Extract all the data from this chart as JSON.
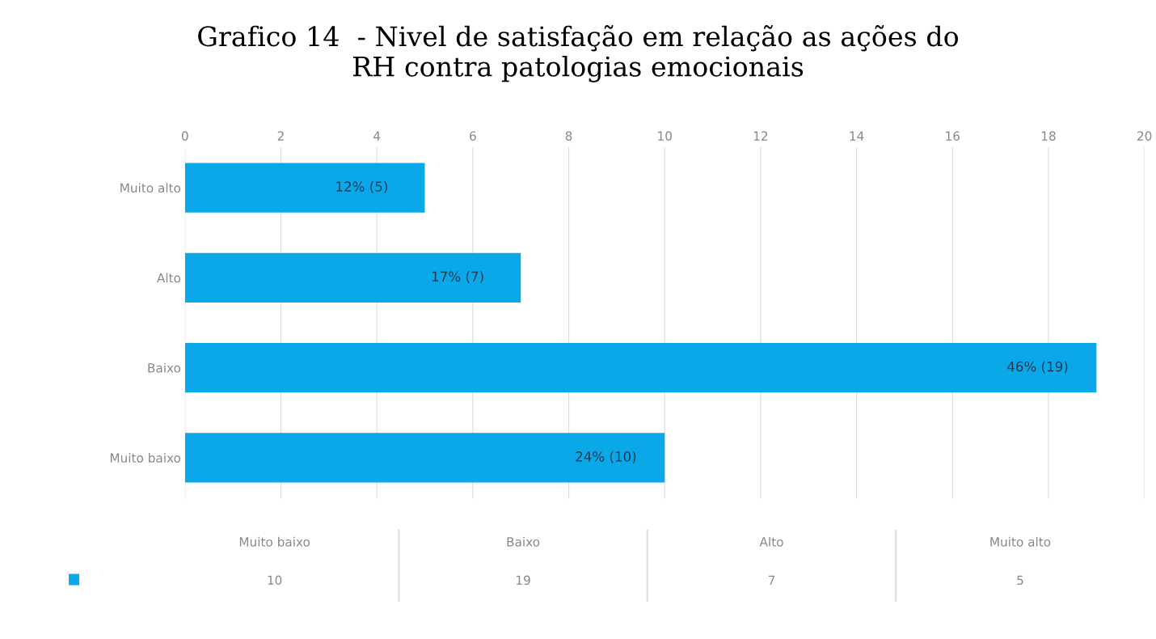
{
  "chart_data": {
    "type": "bar",
    "orientation": "horizontal",
    "title": "Grafico 14  - Nivel de satisfação em relação as ações do\nRH contra patologias emocionais",
    "categories": [
      "Muito alto",
      "Alto",
      "Baixo",
      "Muito baixo"
    ],
    "series": [
      {
        "color": "#0aa8e8",
        "values": [
          5,
          7,
          19,
          10
        ],
        "value_labels": [
          "12% (5)",
          "17% (7)",
          "46% (19)",
          "24% (10)"
        ]
      }
    ],
    "xlim": [
      0,
      20
    ],
    "xticks": [
      0,
      2,
      4,
      6,
      8,
      10,
      12,
      14,
      16,
      18,
      20
    ],
    "grid": "x",
    "data_labels": true,
    "annotations": [
      "10",
      "19",
      "7",
      "5"
    ]
  }
}
